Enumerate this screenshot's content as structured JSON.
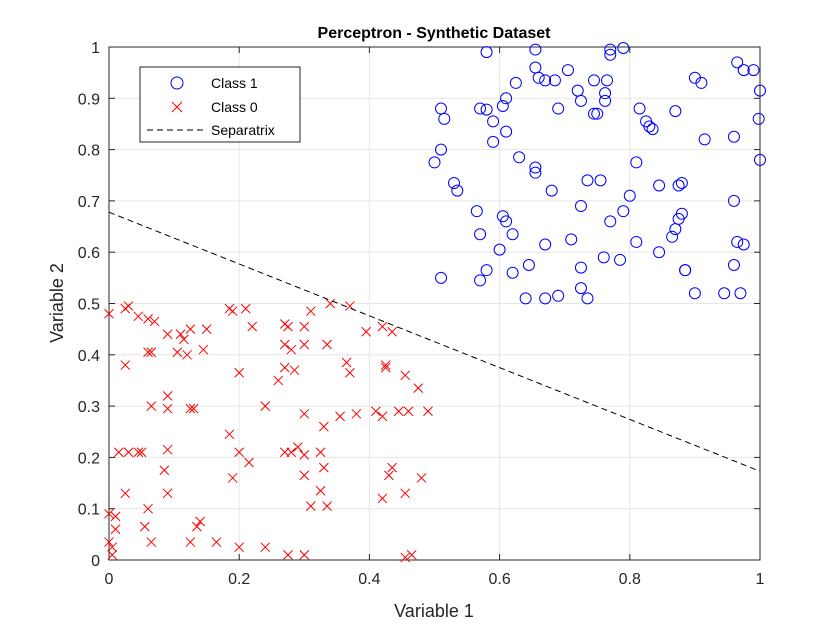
{
  "chart_data": {
    "type": "scatter",
    "title": "Perceptron - Synthetic Dataset",
    "xlabel": "Variable 1",
    "ylabel": "Variable 2",
    "xlim": [
      0,
      1
    ],
    "ylim": [
      0,
      1
    ],
    "xticks": [
      "0",
      "0.2",
      "0.4",
      "0.6",
      "0.8",
      "1"
    ],
    "yticks": [
      "0",
      "0.1",
      "0.2",
      "0.3",
      "0.4",
      "0.5",
      "0.6",
      "0.7",
      "0.8",
      "0.9",
      "1"
    ],
    "grid": true,
    "legend": {
      "position": "top-left"
    },
    "series": [
      {
        "name": "Class 1",
        "marker": "circle",
        "color": "#0000ff",
        "points": [
          [
            0.58,
            0.99
          ],
          [
            0.655,
            0.995
          ],
          [
            0.77,
            0.995
          ],
          [
            0.77,
            0.985
          ],
          [
            0.79,
            0.998
          ],
          [
            0.655,
            0.96
          ],
          [
            0.66,
            0.94
          ],
          [
            0.67,
            0.935
          ],
          [
            0.685,
            0.935
          ],
          [
            0.705,
            0.955
          ],
          [
            0.72,
            0.915
          ],
          [
            0.725,
            0.895
          ],
          [
            0.745,
            0.935
          ],
          [
            0.765,
            0.935
          ],
          [
            0.762,
            0.91
          ],
          [
            0.762,
            0.895
          ],
          [
            0.745,
            0.87
          ],
          [
            0.75,
            0.87
          ],
          [
            0.69,
            0.88
          ],
          [
            0.625,
            0.93
          ],
          [
            0.61,
            0.9
          ],
          [
            0.605,
            0.885
          ],
          [
            0.57,
            0.88
          ],
          [
            0.58,
            0.878
          ],
          [
            0.59,
            0.855
          ],
          [
            0.61,
            0.835
          ],
          [
            0.59,
            0.815
          ],
          [
            0.51,
            0.88
          ],
          [
            0.515,
            0.86
          ],
          [
            0.51,
            0.8
          ],
          [
            0.5,
            0.775
          ],
          [
            0.53,
            0.735
          ],
          [
            0.535,
            0.72
          ],
          [
            0.63,
            0.785
          ],
          [
            0.655,
            0.765
          ],
          [
            0.655,
            0.755
          ],
          [
            0.68,
            0.72
          ],
          [
            0.735,
            0.74
          ],
          [
            0.755,
            0.74
          ],
          [
            0.725,
            0.69
          ],
          [
            0.77,
            0.66
          ],
          [
            0.79,
            0.68
          ],
          [
            0.8,
            0.71
          ],
          [
            0.81,
            0.775
          ],
          [
            0.815,
            0.88
          ],
          [
            0.825,
            0.855
          ],
          [
            0.83,
            0.845
          ],
          [
            0.835,
            0.84
          ],
          [
            0.87,
            0.875
          ],
          [
            0.9,
            0.94
          ],
          [
            0.91,
            0.93
          ],
          [
            0.915,
            0.82
          ],
          [
            0.96,
            0.825
          ],
          [
            0.965,
            0.97
          ],
          [
            0.975,
            0.955
          ],
          [
            0.99,
            0.955
          ],
          [
            1.0,
            0.915
          ],
          [
            0.998,
            0.86
          ],
          [
            1.0,
            0.78
          ],
          [
            0.96,
            0.7
          ],
          [
            0.965,
            0.62
          ],
          [
            0.975,
            0.615
          ],
          [
            0.96,
            0.575
          ],
          [
            0.945,
            0.52
          ],
          [
            0.97,
            0.52
          ],
          [
            0.9,
            0.52
          ],
          [
            0.885,
            0.565
          ],
          [
            0.885,
            0.565
          ],
          [
            0.88,
            0.675
          ],
          [
            0.875,
            0.665
          ],
          [
            0.87,
            0.645
          ],
          [
            0.865,
            0.63
          ],
          [
            0.875,
            0.73
          ],
          [
            0.88,
            0.735
          ],
          [
            0.845,
            0.73
          ],
          [
            0.845,
            0.6
          ],
          [
            0.81,
            0.62
          ],
          [
            0.785,
            0.585
          ],
          [
            0.76,
            0.59
          ],
          [
            0.725,
            0.57
          ],
          [
            0.725,
            0.53
          ],
          [
            0.735,
            0.51
          ],
          [
            0.69,
            0.515
          ],
          [
            0.67,
            0.51
          ],
          [
            0.64,
            0.51
          ],
          [
            0.62,
            0.56
          ],
          [
            0.645,
            0.575
          ],
          [
            0.67,
            0.615
          ],
          [
            0.71,
            0.625
          ],
          [
            0.6,
            0.605
          ],
          [
            0.605,
            0.67
          ],
          [
            0.61,
            0.66
          ],
          [
            0.62,
            0.635
          ],
          [
            0.565,
            0.68
          ],
          [
            0.57,
            0.635
          ],
          [
            0.58,
            0.565
          ],
          [
            0.57,
            0.545
          ],
          [
            0.51,
            0.55
          ]
        ]
      },
      {
        "name": "Class 0",
        "marker": "x",
        "color": "#ff0000",
        "points": [
          [
            0.0,
            0.48
          ],
          [
            0.025,
            0.49
          ],
          [
            0.03,
            0.495
          ],
          [
            0.045,
            0.475
          ],
          [
            0.06,
            0.47
          ],
          [
            0.07,
            0.465
          ],
          [
            0.09,
            0.44
          ],
          [
            0.11,
            0.44
          ],
          [
            0.115,
            0.43
          ],
          [
            0.125,
            0.45
          ],
          [
            0.15,
            0.45
          ],
          [
            0.185,
            0.49
          ],
          [
            0.19,
            0.485
          ],
          [
            0.21,
            0.49
          ],
          [
            0.22,
            0.455
          ],
          [
            0.27,
            0.46
          ],
          [
            0.275,
            0.455
          ],
          [
            0.3,
            0.455
          ],
          [
            0.31,
            0.485
          ],
          [
            0.34,
            0.5
          ],
          [
            0.37,
            0.495
          ],
          [
            0.395,
            0.445
          ],
          [
            0.42,
            0.455
          ],
          [
            0.435,
            0.445
          ],
          [
            0.06,
            0.405
          ],
          [
            0.065,
            0.405
          ],
          [
            0.105,
            0.405
          ],
          [
            0.12,
            0.4
          ],
          [
            0.145,
            0.41
          ],
          [
            0.025,
            0.38
          ],
          [
            0.27,
            0.42
          ],
          [
            0.28,
            0.41
          ],
          [
            0.3,
            0.42
          ],
          [
            0.335,
            0.42
          ],
          [
            0.365,
            0.385
          ],
          [
            0.37,
            0.365
          ],
          [
            0.27,
            0.375
          ],
          [
            0.285,
            0.37
          ],
          [
            0.26,
            0.35
          ],
          [
            0.2,
            0.365
          ],
          [
            0.425,
            0.38
          ],
          [
            0.425,
            0.375
          ],
          [
            0.455,
            0.36
          ],
          [
            0.475,
            0.335
          ],
          [
            0.09,
            0.32
          ],
          [
            0.065,
            0.3
          ],
          [
            0.09,
            0.295
          ],
          [
            0.125,
            0.295
          ],
          [
            0.13,
            0.295
          ],
          [
            0.24,
            0.3
          ],
          [
            0.3,
            0.285
          ],
          [
            0.33,
            0.26
          ],
          [
            0.355,
            0.28
          ],
          [
            0.38,
            0.285
          ],
          [
            0.41,
            0.29
          ],
          [
            0.42,
            0.28
          ],
          [
            0.445,
            0.29
          ],
          [
            0.46,
            0.29
          ],
          [
            0.49,
            0.29
          ],
          [
            0.185,
            0.245
          ],
          [
            0.015,
            0.21
          ],
          [
            0.03,
            0.21
          ],
          [
            0.045,
            0.21
          ],
          [
            0.05,
            0.21
          ],
          [
            0.09,
            0.215
          ],
          [
            0.085,
            0.175
          ],
          [
            0.2,
            0.21
          ],
          [
            0.215,
            0.19
          ],
          [
            0.27,
            0.21
          ],
          [
            0.28,
            0.21
          ],
          [
            0.29,
            0.22
          ],
          [
            0.3,
            0.205
          ],
          [
            0.325,
            0.21
          ],
          [
            0.33,
            0.18
          ],
          [
            0.19,
            0.16
          ],
          [
            0.3,
            0.165
          ],
          [
            0.43,
            0.165
          ],
          [
            0.435,
            0.18
          ],
          [
            0.48,
            0.16
          ],
          [
            0.025,
            0.13
          ],
          [
            0.09,
            0.13
          ],
          [
            0.325,
            0.135
          ],
          [
            0.31,
            0.105
          ],
          [
            0.335,
            0.105
          ],
          [
            0.42,
            0.12
          ],
          [
            0.455,
            0.13
          ],
          [
            0.0,
            0.09
          ],
          [
            0.01,
            0.085
          ],
          [
            0.01,
            0.06
          ],
          [
            0.06,
            0.1
          ],
          [
            0.14,
            0.075
          ],
          [
            0.135,
            0.065
          ],
          [
            0.055,
            0.065
          ],
          [
            0.0,
            0.035
          ],
          [
            0.065,
            0.035
          ],
          [
            0.125,
            0.035
          ],
          [
            0.165,
            0.035
          ],
          [
            0.2,
            0.025
          ],
          [
            0.24,
            0.025
          ],
          [
            0.275,
            0.01
          ],
          [
            0.3,
            0.01
          ],
          [
            0.455,
            0.005
          ],
          [
            0.465,
            0.01
          ],
          [
            0.005,
            0.01
          ],
          [
            0.005,
            0.025
          ]
        ]
      },
      {
        "name": "Separatrix",
        "marker": "dashed-line",
        "color": "#000000",
        "points": [
          [
            0.0,
            0.678
          ],
          [
            1.0,
            0.173
          ]
        ]
      }
    ]
  }
}
